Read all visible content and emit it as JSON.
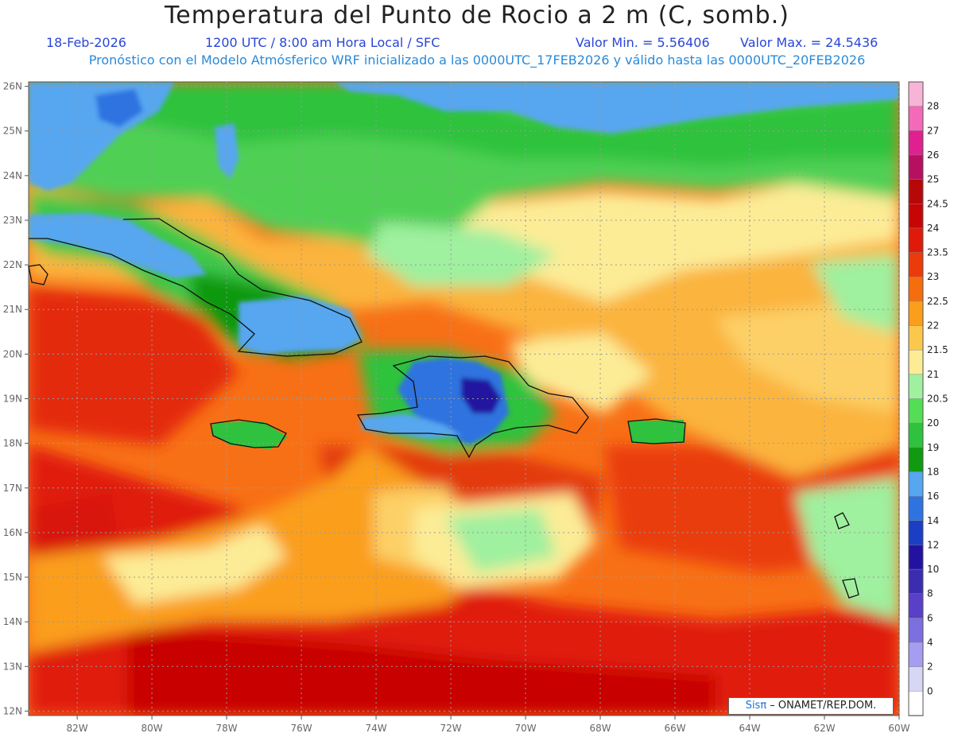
{
  "header": {
    "title": "Temperatura del Punto de Rocio a 2 m (C, somb.)",
    "date": "18-Feb-2026",
    "time": "1200 UTC / 8:00 am Hora Local / SFC",
    "min": "Valor Min. = 5.56406",
    "max": "Valor Max. = 24.5436",
    "model_info": "Pronóstico con el Modelo Atmósferico WRF inicializado a las 0000UTC_17FEB2026 y válido hasta las  0000UTC_20FEB2026"
  },
  "map": {
    "lon_range": [
      -83.3,
      -60.0
    ],
    "lat_range": [
      11.9,
      26.1
    ],
    "lon_ticks": [
      "82W",
      "80W",
      "78W",
      "76W",
      "74W",
      "72W",
      "70W",
      "68W",
      "66W",
      "64W",
      "62W",
      "60W"
    ],
    "lat_ticks": [
      "12N",
      "13N",
      "14N",
      "15N",
      "16N",
      "17N",
      "18N",
      "19N",
      "20N",
      "21N",
      "22N",
      "23N",
      "24N",
      "25N",
      "26N"
    ],
    "grid": true
  },
  "legend": {
    "levels": [
      "0",
      "2",
      "4",
      "6",
      "8",
      "10",
      "12",
      "14",
      "16",
      "18",
      "19",
      "20",
      "20.5",
      "21",
      "21.5",
      "22",
      "22.5",
      "23",
      "23.5",
      "24",
      "24.5",
      "25",
      "26",
      "27",
      "28"
    ],
    "colors": [
      "#ffffff",
      "#d6d6f5",
      "#a59ef0",
      "#7c6fe0",
      "#5a3fc8",
      "#3a2db0",
      "#2312a0",
      "#1a3fc4",
      "#2f73e0",
      "#56a6f0",
      "#119911",
      "#2ec23e",
      "#55dd55",
      "#9ff09f",
      "#fcec96",
      "#fbc84e",
      "#fa9e1c",
      "#f56e0e",
      "#eb3b0b",
      "#e01a0a",
      "#c80505",
      "#b60808",
      "#b81060",
      "#e0208e",
      "#f46ab8",
      "#f7b4d6"
    ]
  },
  "credit": {
    "brand": "Sisπ",
    "text": " – ONAMET/REP.DOM."
  }
}
